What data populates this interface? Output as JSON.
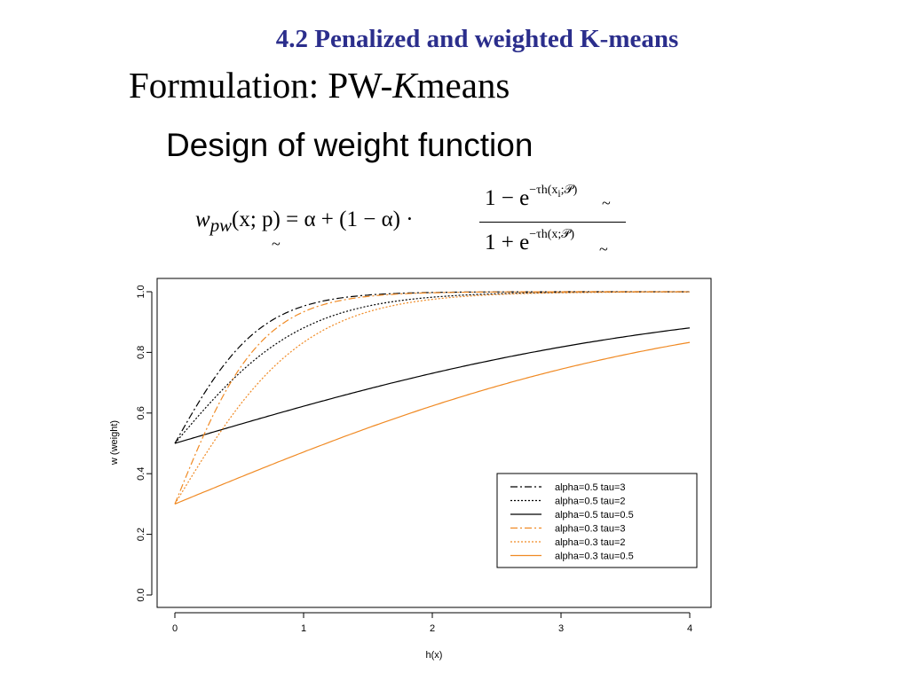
{
  "slide": {
    "title": "4.2 Penalized and weighted K-means",
    "formulation_prefix": "Formulation: PW-",
    "formulation_italic": "K",
    "formulation_suffix": "means",
    "subtitle": "Design of weight function",
    "formula": {
      "lhs": "w",
      "lhs_sub": "pw",
      "lhs_args": "(x; p) = α + (1 − α) ·",
      "num_prefix": "1 − e",
      "num_exp": "−τh(x",
      "num_exp_sub": "i",
      "num_exp_suffix": ";𝒫)",
      "den_prefix": "1 + e",
      "den_exp": "−τh(x;𝒫)",
      "tilde": "~"
    }
  },
  "chart_data": {
    "type": "line",
    "xlabel": "h(x)",
    "ylabel": "w (weight)",
    "xlim": [
      0,
      4
    ],
    "ylim": [
      0,
      1
    ],
    "xticks": [
      "0",
      "1",
      "2",
      "3",
      "4"
    ],
    "yticks": [
      "0.0",
      "0.2",
      "0.4",
      "0.6",
      "0.8",
      "1.0"
    ],
    "grid": false,
    "legend_position": "bottom-right",
    "x": [
      0,
      0.25,
      0.5,
      0.75,
      1,
      1.25,
      1.5,
      1.75,
      2,
      2.25,
      2.5,
      2.75,
      3,
      3.25,
      3.5,
      3.75,
      4
    ],
    "series": [
      {
        "name": "alpha=0.5 tau=3",
        "alpha": 0.5,
        "tau": 3,
        "color": "#000000",
        "dash": "8,3,2,3",
        "values": [
          0.5,
          0.68,
          0.82,
          0.9,
          0.95,
          0.98,
          0.99,
          0.99,
          1.0,
          1.0,
          1.0,
          1.0,
          1.0,
          1.0,
          1.0,
          1.0,
          1.0
        ]
      },
      {
        "name": "alpha=0.5 tau=2",
        "alpha": 0.5,
        "tau": 2,
        "color": "#000000",
        "dash": "2,2",
        "values": [
          0.5,
          0.62,
          0.73,
          0.82,
          0.88,
          0.92,
          0.95,
          0.97,
          0.98,
          0.99,
          0.99,
          1.0,
          1.0,
          1.0,
          1.0,
          1.0,
          1.0
        ]
      },
      {
        "name": "alpha=0.5 tau=0.5",
        "alpha": 0.5,
        "tau": 0.5,
        "color": "#000000",
        "dash": "",
        "values": [
          0.5,
          0.53,
          0.56,
          0.59,
          0.62,
          0.65,
          0.68,
          0.71,
          0.73,
          0.76,
          0.78,
          0.8,
          0.82,
          0.84,
          0.85,
          0.87,
          0.88
        ]
      },
      {
        "name": "alpha=0.3 tau=3",
        "alpha": 0.3,
        "tau": 3,
        "color": "#f08a24",
        "dash": "8,3,2,3",
        "values": [
          0.3,
          0.55,
          0.74,
          0.86,
          0.93,
          0.96,
          0.98,
          0.99,
          1.0,
          1.0,
          1.0,
          1.0,
          1.0,
          1.0,
          1.0,
          1.0,
          1.0
        ]
      },
      {
        "name": "alpha=0.3 tau=2",
        "alpha": 0.3,
        "tau": 2,
        "color": "#f08a24",
        "dash": "2,2",
        "values": [
          0.3,
          0.47,
          0.62,
          0.75,
          0.83,
          0.89,
          0.93,
          0.96,
          0.97,
          0.98,
          0.99,
          0.99,
          1.0,
          1.0,
          1.0,
          1.0,
          1.0
        ]
      },
      {
        "name": "alpha=0.3 tau=0.5",
        "alpha": 0.3,
        "tau": 0.5,
        "color": "#f08a24",
        "dash": "",
        "values": [
          0.3,
          0.34,
          0.38,
          0.42,
          0.47,
          0.51,
          0.55,
          0.59,
          0.62,
          0.66,
          0.69,
          0.72,
          0.74,
          0.77,
          0.79,
          0.81,
          0.83
        ]
      }
    ]
  }
}
